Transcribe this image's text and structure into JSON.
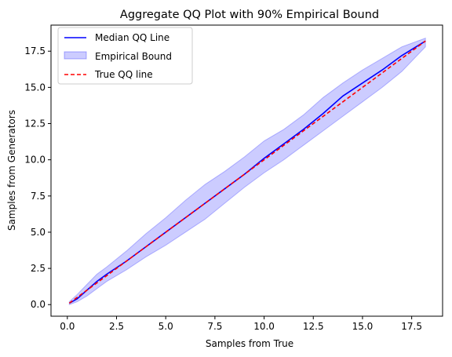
{
  "chart_data": {
    "type": "line",
    "title": "Aggregate QQ Plot with 90% Empirical Bound",
    "xlabel": "Samples from True",
    "ylabel": "Samples from Generators",
    "xlim": [
      -0.83,
      19.07
    ],
    "ylim": [
      -0.8,
      19.3
    ],
    "xticks": [
      0.0,
      2.5,
      5.0,
      7.5,
      10.0,
      12.5,
      15.0,
      17.5
    ],
    "yticks": [
      0.0,
      2.5,
      5.0,
      7.5,
      10.0,
      12.5,
      15.0,
      17.5
    ],
    "grid": false,
    "legend_position": "upper-left",
    "legend": [
      {
        "label": "Median QQ Line",
        "style": "line",
        "color": "#0000ff"
      },
      {
        "label": "Empirical Bound",
        "style": "fill",
        "color": "#0000ff"
      },
      {
        "label": "True QQ line",
        "style": "dashed",
        "color": "#ff0000"
      }
    ],
    "series": [
      {
        "name": "Median QQ Line",
        "color": "#0000ff",
        "x": [
          0.1,
          0.5,
          1.0,
          1.5,
          2.0,
          3.0,
          4.0,
          5.0,
          6.0,
          7.0,
          8.0,
          9.0,
          10.0,
          11.0,
          12.0,
          13.0,
          14.0,
          15.0,
          16.0,
          17.0,
          18.2
        ],
        "y": [
          0.1,
          0.4,
          1.0,
          1.6,
          2.1,
          3.0,
          4.0,
          5.0,
          6.0,
          7.0,
          8.0,
          9.0,
          10.1,
          11.1,
          12.1,
          13.2,
          14.4,
          15.3,
          16.2,
          17.2,
          18.2
        ]
      },
      {
        "name": "True QQ line",
        "color": "#ff0000",
        "dash": true,
        "x": [
          0.1,
          18.2
        ],
        "y": [
          0.1,
          18.2
        ]
      }
    ],
    "band": {
      "name": "Empirical Bound",
      "color": "#0000ff",
      "x": [
        0.1,
        0.5,
        1.0,
        1.5,
        2.0,
        3.0,
        4.0,
        5.0,
        6.0,
        7.0,
        8.0,
        9.0,
        10.0,
        11.0,
        12.0,
        13.0,
        14.0,
        15.0,
        16.0,
        17.0,
        18.2
      ],
      "lower": [
        0.0,
        0.2,
        0.6,
        1.1,
        1.6,
        2.4,
        3.3,
        4.1,
        5.0,
        5.9,
        7.0,
        8.1,
        9.1,
        10.0,
        11.0,
        12.0,
        13.0,
        14.0,
        15.0,
        16.1,
        17.8
      ],
      "upper": [
        0.2,
        0.7,
        1.4,
        2.1,
        2.6,
        3.7,
        4.9,
        6.0,
        7.2,
        8.3,
        9.2,
        10.2,
        11.3,
        12.1,
        13.1,
        14.3,
        15.3,
        16.2,
        17.0,
        17.8,
        18.4
      ]
    }
  }
}
